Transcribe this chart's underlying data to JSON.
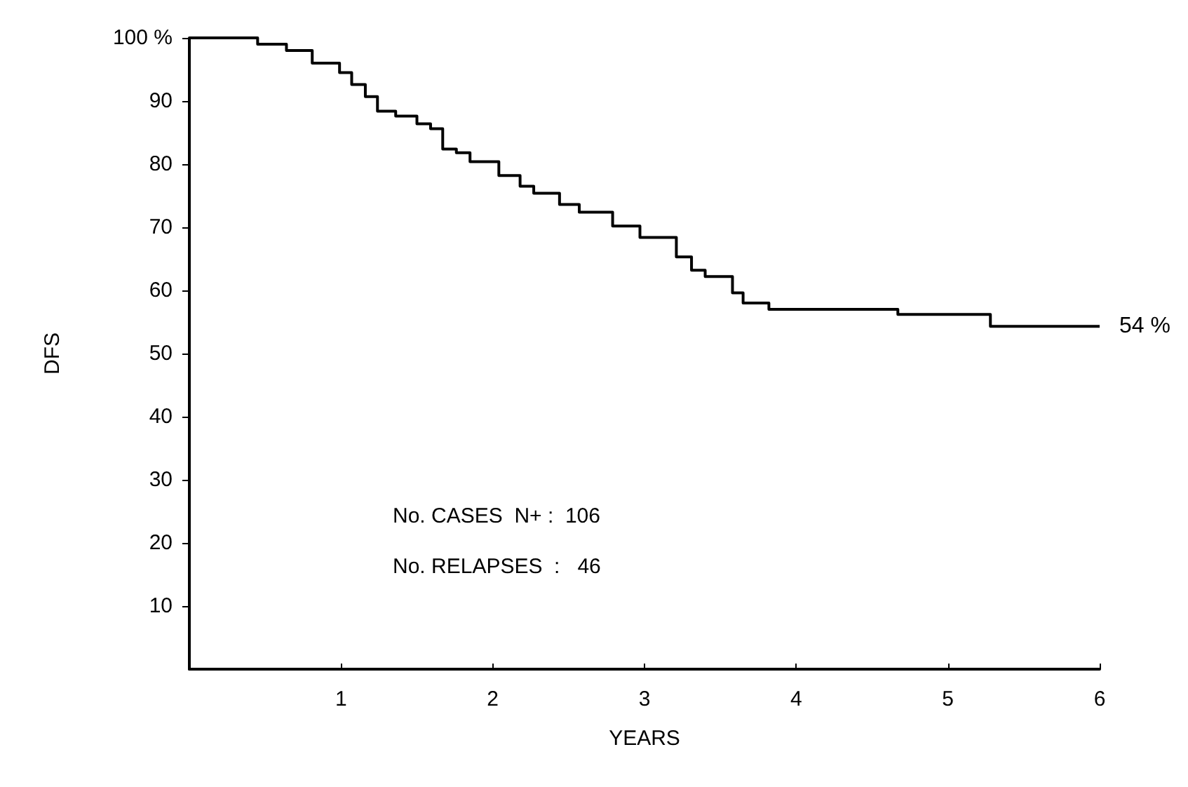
{
  "chart_data": {
    "type": "step",
    "xlabel": "YEARS",
    "ylabel": "DFS",
    "x": [
      0,
      0.45,
      0.64,
      0.81,
      0.99,
      1.07,
      1.16,
      1.24,
      1.36,
      1.5,
      1.59,
      1.67,
      1.76,
      1.85,
      2.04,
      2.18,
      2.27,
      2.44,
      2.57,
      2.79,
      2.97,
      3.21,
      3.31,
      3.4,
      3.58,
      3.65,
      3.82,
      4.67,
      5.28,
      6
    ],
    "series": [
      {
        "color": "#000000",
        "values": [
          100,
          99,
          98,
          96,
          94.5,
          92.6,
          90.7,
          88.4,
          87.6,
          86.4,
          85.6,
          82.4,
          81.8,
          80.4,
          78.2,
          76.5,
          75.4,
          73.6,
          72.4,
          70.2,
          68.4,
          65.3,
          63.2,
          62.2,
          59.6,
          58,
          57,
          56.2,
          54.3,
          54.3
        ]
      }
    ],
    "xlim": [
      0,
      6
    ],
    "xticks": [
      1,
      2,
      3,
      4,
      5,
      6
    ],
    "ylim": [
      0,
      100
    ],
    "yticks": [
      10,
      20,
      30,
      40,
      50,
      60,
      70,
      80,
      90,
      {
        "value": 100,
        "label": "100 %"
      }
    ],
    "annotations": [
      {
        "text": "54 %",
        "x": 6,
        "y": 54.3
      },
      "No. CASES  N+ :  106",
      "No. RELAPSES  :   46"
    ],
    "grid": false,
    "legend": false,
    "marker": "none",
    "line_style": "solid"
  }
}
